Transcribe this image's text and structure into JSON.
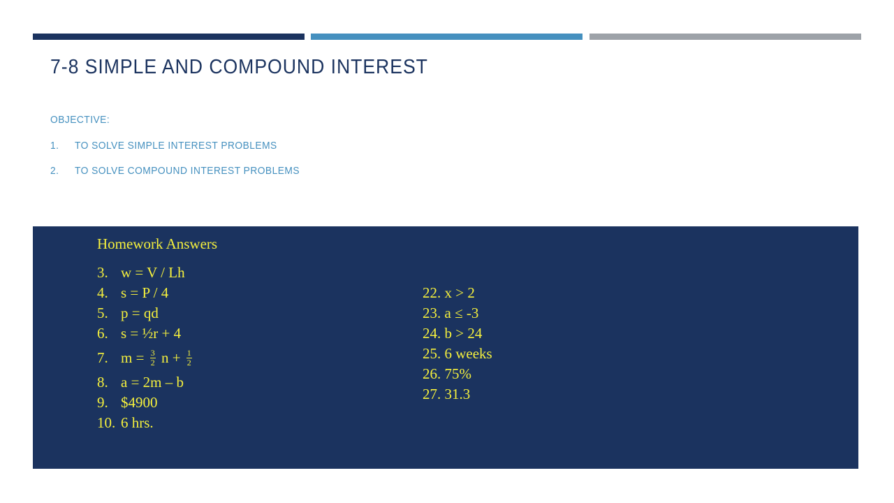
{
  "title": "7-8 SIMPLE AND COMPOUND INTEREST",
  "objective": {
    "heading": "OBJECTIVE:",
    "items": [
      {
        "num": "1.",
        "text": "TO SOLVE SIMPLE INTEREST PROBLEMS"
      },
      {
        "num": "2.",
        "text": "TO SOLVE COMPOUND INTEREST PROBLEMS"
      }
    ]
  },
  "homework": {
    "title": "Homework Answers",
    "left": [
      {
        "num": "3.",
        "text": "w = V / Lh"
      },
      {
        "num": "4.",
        "text": "s = P / 4"
      },
      {
        "num": "5.",
        "text": "p = qd"
      },
      {
        "num": "6.",
        "text": "s = ½r + 4"
      },
      {
        "num": "7.",
        "prefix": "m =",
        "frac1_num": "3",
        "frac1_den": "2",
        "middle": "n +",
        "frac2_num": "1",
        "frac2_den": "2"
      },
      {
        "num": "8.",
        "text": "a = 2m – b"
      },
      {
        "num": "9.",
        "text": "$4900"
      },
      {
        "num": "10.",
        "text": "6 hrs."
      }
    ],
    "right": [
      {
        "num": "22.",
        "text": "x > 2"
      },
      {
        "num": "23.",
        "text": "a ≤ -3"
      },
      {
        "num": "24.",
        "text": "b > 24"
      },
      {
        "num": "25.",
        "text": "6 weeks"
      },
      {
        "num": "26.",
        "text": "75%"
      },
      {
        "num": "27.",
        "text": "31.3"
      }
    ]
  },
  "colors": {
    "navy": "#1b335f",
    "blue": "#4590bf",
    "gray": "#9da2a8",
    "yellow": "#f5f03d"
  }
}
